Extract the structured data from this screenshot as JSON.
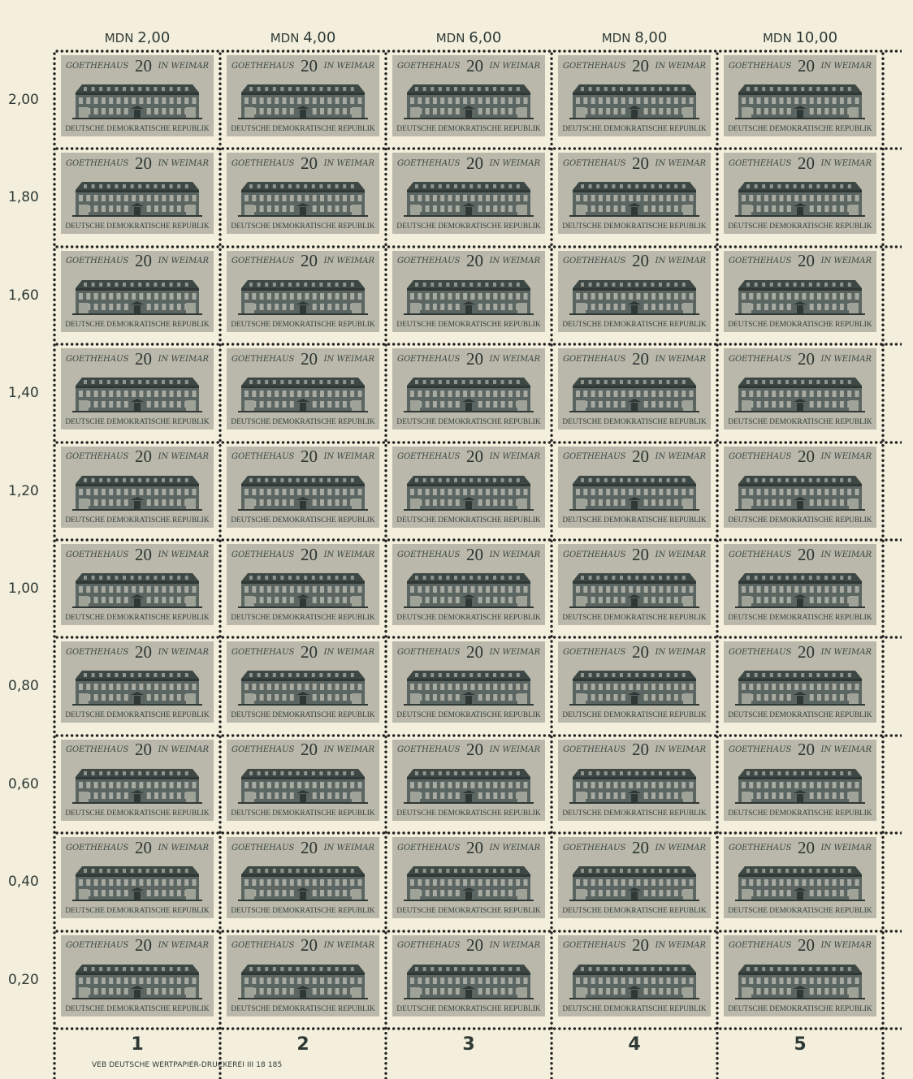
{
  "sheet": {
    "column_values": [
      {
        "currency": "MDN",
        "amount": "2,00"
      },
      {
        "currency": "MDN",
        "amount": "4,00"
      },
      {
        "currency": "MDN",
        "amount": "6,00"
      },
      {
        "currency": "MDN",
        "amount": "8,00"
      },
      {
        "currency": "MDN",
        "amount": "10,00"
      }
    ],
    "row_values": [
      "2,00",
      "1,80",
      "1,60",
      "1,40",
      "1,20",
      "1,00",
      "0,80",
      "0,60",
      "0,40",
      "0,20"
    ],
    "column_numbers": [
      "1",
      "2",
      "3",
      "4",
      "5"
    ],
    "imprint": "VEB DEUTSCHE WERTPAPIER-DRUCKEREI   III 18 185"
  },
  "stamp": {
    "title_left": "GOETHEHAUS",
    "value": "20",
    "title_right": "IN WEIMAR",
    "country": "DEUTSCHE DEMOKRATISCHE REPUBLIK",
    "rows": 10,
    "columns": 5,
    "colors": {
      "paper": "#f3efdc",
      "stamp_background": "#b9b8aa",
      "ink": "#2f3a36"
    }
  }
}
